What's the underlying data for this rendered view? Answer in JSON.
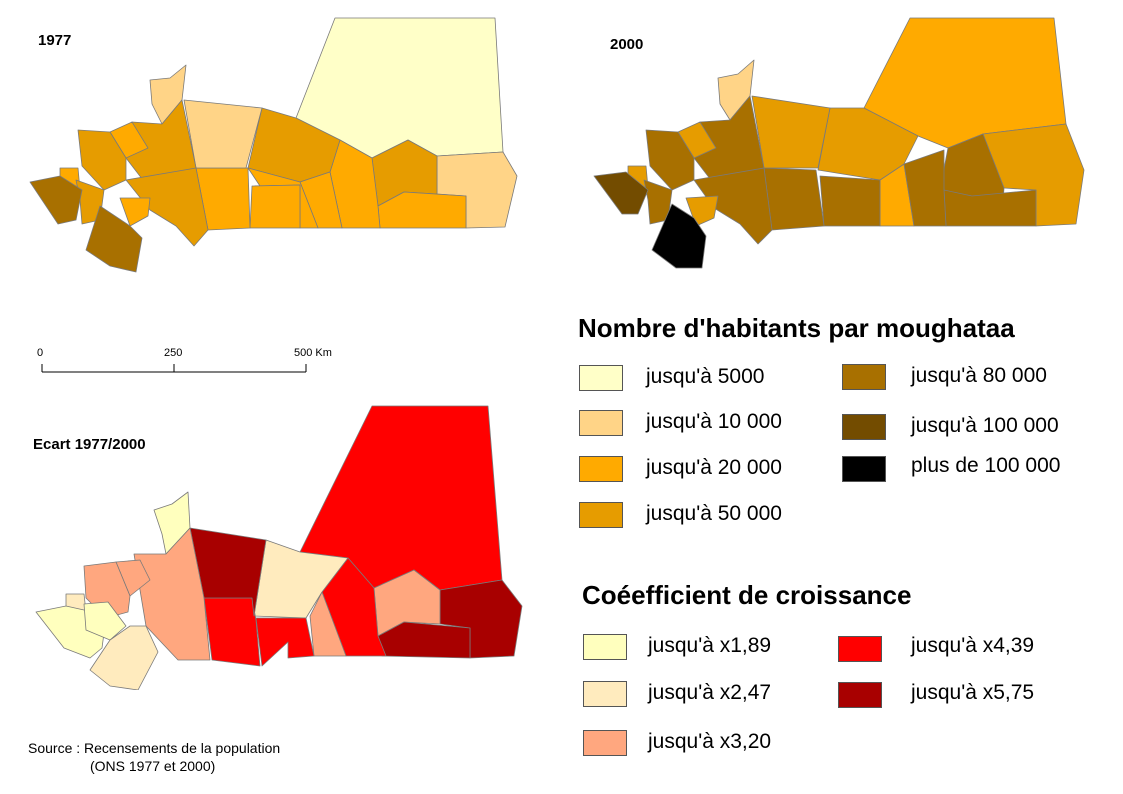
{
  "maps": {
    "m1977": {
      "title": "1977"
    },
    "m2000": {
      "title": "2000"
    },
    "ecart": {
      "title": "Ecart 1977/2000"
    }
  },
  "scale": {
    "labels": [
      "0",
      "250",
      "500 Km"
    ]
  },
  "legend_pop": {
    "title": "Nombre d'habitants par moughataa",
    "items": [
      {
        "label": "jusqu'à 5000",
        "color": "#ffffc8"
      },
      {
        "label": "jusqu'à 10 000",
        "color": "#ffd487"
      },
      {
        "label": "jusqu'à 20 000",
        "color": "#ffaa00"
      },
      {
        "label": "jusqu'à 50 000",
        "color": "#e69c00"
      },
      {
        "label": "jusqu'à 80 000",
        "color": "#a87000"
      },
      {
        "label": "jusqu'à 100 000",
        "color": "#734c00"
      },
      {
        "label": "plus de 100 000",
        "color": "#000000"
      }
    ]
  },
  "legend_growth": {
    "title": "Coéefficient de croissance",
    "items": [
      {
        "label": "jusqu'à x1,89",
        "color": "#ffffbe"
      },
      {
        "label": "jusqu'à x2,47",
        "color": "#ffebbe"
      },
      {
        "label": "jusqu'à x3,20",
        "color": "#ffa77f"
      },
      {
        "label": "jusqu'à x4,39",
        "color": "#ff0000"
      },
      {
        "label": "jusqu'à x5,75",
        "color": "#a80000"
      }
    ]
  },
  "source": {
    "line1": "Source : Recensements de la population",
    "line2": "(ONS 1977 et 2000)"
  }
}
